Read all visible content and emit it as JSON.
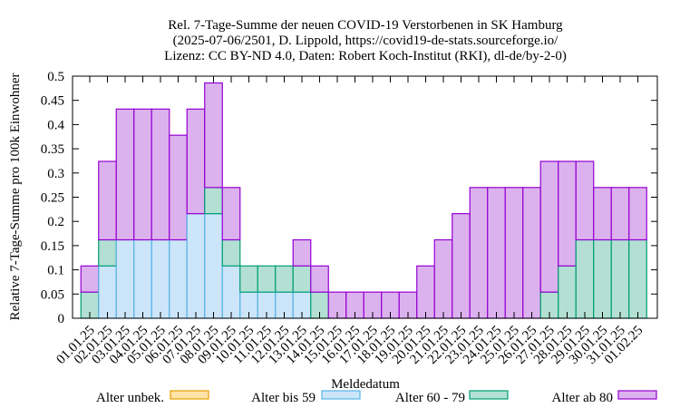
{
  "chart_data": {
    "type": "bar",
    "stacked": true,
    "title_lines": [
      "Rel. 7-Tage-Summe der neuen COVID-19 Verstorbenen in SK Hamburg",
      "(2025-07-06/2501, D. Lippold, https://covid19-de-stats.sourceforge.io/",
      "Lizenz: CC BY-ND 4.0, Daten: Robert Koch-Institut (RKI), dl-de/by-2-0)"
    ],
    "xlabel": "Meldedatum",
    "ylabel": "Relative 7-Tage-Summe pro 100k Einwohner",
    "ylim": [
      0,
      0.5
    ],
    "yticks": [
      "0",
      "0.05",
      "0.1",
      "0.15",
      "0.2",
      "0.25",
      "0.3",
      "0.35",
      "0.4",
      "0.45",
      "0.5"
    ],
    "categories": [
      "01.01.25",
      "02.01.25",
      "03.01.25",
      "04.01.25",
      "05.01.25",
      "06.01.25",
      "07.01.25",
      "08.01.25",
      "09.01.25",
      "10.01.25",
      "11.01.25",
      "12.01.25",
      "13.01.25",
      "14.01.25",
      "15.01.25",
      "16.01.25",
      "17.01.25",
      "18.01.25",
      "19.01.25",
      "20.01.25",
      "21.01.25",
      "22.01.25",
      "23.01.25",
      "24.01.25",
      "25.01.25",
      "26.01.25",
      "27.01.25",
      "28.01.25",
      "29.01.25",
      "30.01.25",
      "31.01.25",
      "01.02.25"
    ],
    "series": [
      {
        "name": "Alter unbek.",
        "fill": "#fde3a7",
        "stroke": "#e69f00",
        "values": [
          0,
          0,
          0,
          0,
          0,
          0,
          0,
          0,
          0,
          0,
          0,
          0,
          0,
          0,
          0,
          0,
          0,
          0,
          0,
          0,
          0,
          0,
          0,
          0,
          0,
          0,
          0,
          0,
          0,
          0,
          0,
          0
        ]
      },
      {
        "name": "Alter bis 59",
        "fill": "#cce5f8",
        "stroke": "#56b4e9",
        "values": [
          0,
          0.108,
          0.162,
          0.162,
          0.162,
          0.162,
          0.216,
          0.216,
          0.108,
          0.054,
          0.054,
          0.054,
          0.054,
          0,
          0,
          0,
          0,
          0,
          0,
          0,
          0,
          0,
          0,
          0,
          0,
          0,
          0,
          0,
          0,
          0,
          0,
          0
        ]
      },
      {
        "name": "Alter 60 - 79",
        "fill": "#b3e0d3",
        "stroke": "#009e73",
        "values": [
          0.054,
          0.054,
          0,
          0,
          0,
          0,
          0,
          0.054,
          0.054,
          0.054,
          0.054,
          0.054,
          0.054,
          0.054,
          0,
          0,
          0,
          0,
          0,
          0,
          0,
          0,
          0,
          0,
          0,
          0,
          0.054,
          0.108,
          0.162,
          0.162,
          0.162,
          0.162
        ]
      },
      {
        "name": "Alter ab 80",
        "fill": "#dcb2ee",
        "stroke": "#9400d3",
        "values": [
          0.054,
          0.162,
          0.27,
          0.27,
          0.27,
          0.216,
          0.216,
          0.216,
          0.108,
          0,
          0,
          0,
          0.054,
          0.054,
          0.054,
          0.054,
          0.054,
          0.054,
          0.054,
          0.108,
          0.162,
          0.216,
          0.27,
          0.27,
          0.27,
          0.27,
          0.27,
          0.216,
          0.162,
          0.108,
          0.108,
          0.108
        ]
      }
    ],
    "legend_position": "bottom",
    "grid": false
  }
}
